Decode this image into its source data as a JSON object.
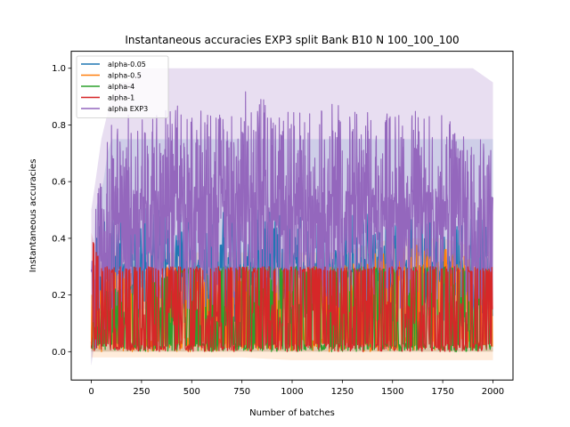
{
  "chart_data": {
    "type": "line",
    "title": "Instantaneous accuracies EXP3 split Bank B10 N 100_100_100",
    "xlabel": "Number of batches",
    "ylabel": "Instantaneous accuracies",
    "xlim": [
      -100,
      2100
    ],
    "ylim": [
      -0.1,
      1.06
    ],
    "xticks": [
      0,
      250,
      500,
      750,
      1000,
      1250,
      1500,
      1750,
      2000
    ],
    "yticks": [
      0.0,
      0.2,
      0.4,
      0.6,
      0.8,
      1.0
    ],
    "xtick_labels": [
      "0",
      "250",
      "500",
      "750",
      "1000",
      "1250",
      "1500",
      "1750",
      "2000"
    ],
    "ytick_labels": [
      "0.0",
      "0.2",
      "0.4",
      "0.6",
      "0.8",
      "1.0"
    ],
    "legend_position": "upper-left",
    "series": [
      {
        "name": "alpha-0.05",
        "color": "#1f77b4",
        "x": [
          0,
          20,
          40,
          60,
          80,
          100,
          150,
          200,
          250,
          280,
          300,
          400,
          500,
          1000,
          1500,
          2000
        ],
        "mean": [
          0.03,
          0.3,
          0.4,
          0.45,
          0.42,
          0.48,
          0.45,
          0.44,
          0.46,
          0.5,
          0.44,
          0.43,
          0.42,
          0.42,
          0.42,
          0.42
        ],
        "min": [
          0.0,
          0.0,
          0.02,
          0.1,
          0.1,
          0.1,
          0.1,
          0.12,
          0.12,
          0.12,
          0.12,
          0.1,
          0.1,
          0.1,
          0.1,
          0.1
        ],
        "max": [
          0.05,
          0.42,
          0.48,
          0.5,
          0.48,
          0.52,
          0.5,
          0.5,
          0.5,
          0.52,
          0.5,
          0.5,
          0.5,
          0.5,
          0.5,
          0.5
        ],
        "band_lower": [
          -0.05,
          0.2,
          0.25,
          0.3,
          0.3,
          0.3,
          0.3,
          0.3,
          0.3,
          0.3,
          0.3,
          0.3,
          0.3,
          0.3,
          0.3,
          0.3
        ],
        "band_upper": [
          0.1,
          0.5,
          0.55,
          0.6,
          0.7,
          0.75,
          0.75,
          0.75,
          0.75,
          0.75,
          0.75,
          0.75,
          0.75,
          0.75,
          0.75,
          0.75
        ]
      },
      {
        "name": "alpha-0.5",
        "color": "#ff7f0e",
        "x": [
          0,
          100,
          250,
          500,
          750,
          1000,
          1250,
          1500,
          1750,
          2000
        ],
        "mean": [
          0.05,
          0.15,
          0.15,
          0.15,
          0.15,
          0.15,
          0.15,
          0.16,
          0.16,
          0.15
        ],
        "min": [
          0.0,
          0.0,
          0.0,
          0.0,
          0.0,
          0.0,
          0.0,
          0.0,
          0.0,
          0.0
        ],
        "max": [
          0.2,
          0.3,
          0.3,
          0.3,
          0.3,
          0.3,
          0.3,
          0.38,
          0.38,
          0.3
        ],
        "band_lower": [
          -0.02,
          -0.02,
          -0.02,
          -0.02,
          -0.02,
          -0.03,
          -0.03,
          -0.03,
          -0.03,
          -0.03
        ],
        "band_upper": [
          0.3,
          0.35,
          0.35,
          0.35,
          0.35,
          0.35,
          0.35,
          0.4,
          0.4,
          0.35
        ]
      },
      {
        "name": "alpha-4",
        "color": "#2ca02c",
        "x": [
          0,
          500,
          1000,
          1500,
          2000
        ],
        "mean": [
          0.1,
          0.12,
          0.12,
          0.12,
          0.12
        ],
        "min": [
          0.0,
          0.0,
          0.0,
          0.0,
          0.0
        ],
        "max": [
          0.2,
          0.3,
          0.3,
          0.3,
          0.3
        ],
        "band_lower": [
          0.0,
          0.0,
          0.0,
          0.0,
          0.0
        ],
        "band_upper": [
          0.2,
          0.3,
          0.3,
          0.3,
          0.3
        ]
      },
      {
        "name": "alpha-1",
        "color": "#d62728",
        "x": [
          0,
          50,
          100,
          150,
          200,
          250,
          500,
          750,
          1000,
          1250,
          1500,
          1750,
          2000
        ],
        "mean": [
          0.05,
          0.12,
          0.12,
          0.13,
          0.13,
          0.13,
          0.13,
          0.13,
          0.13,
          0.13,
          0.13,
          0.13,
          0.13
        ],
        "min": [
          0.0,
          0.0,
          0.0,
          0.0,
          0.0,
          0.0,
          0.0,
          0.0,
          0.0,
          0.0,
          0.0,
          0.0,
          0.0
        ],
        "max": [
          0.42,
          0.3,
          0.3,
          0.3,
          0.3,
          0.3,
          0.3,
          0.3,
          0.3,
          0.3,
          0.3,
          0.3,
          0.3
        ],
        "band_lower": [
          0.0,
          0.0,
          0.0,
          0.0,
          0.0,
          0.0,
          0.0,
          0.0,
          0.0,
          0.0,
          0.0,
          0.0,
          0.0
        ],
        "band_upper": [
          0.42,
          0.3,
          0.3,
          0.3,
          0.3,
          0.3,
          0.3,
          0.3,
          0.3,
          0.3,
          0.3,
          0.3,
          0.3
        ]
      },
      {
        "name": "alpha EXP3",
        "color": "#9467bd",
        "x": [
          0,
          20,
          50,
          100,
          150,
          200,
          250,
          300,
          400,
          500,
          600,
          700,
          800,
          850,
          900,
          1000,
          1100,
          1200,
          1300,
          1400,
          1500,
          1600,
          1700,
          1800,
          1900,
          2000
        ],
        "mean": [
          0.15,
          0.3,
          0.4,
          0.45,
          0.5,
          0.52,
          0.52,
          0.5,
          0.5,
          0.5,
          0.5,
          0.5,
          0.5,
          0.5,
          0.5,
          0.5,
          0.5,
          0.5,
          0.5,
          0.5,
          0.5,
          0.5,
          0.5,
          0.5,
          0.5,
          0.5
        ],
        "min": [
          0.0,
          0.0,
          0.05,
          0.1,
          0.12,
          0.12,
          0.15,
          0.15,
          0.15,
          0.15,
          0.15,
          0.15,
          0.15,
          0.15,
          0.15,
          0.15,
          0.15,
          0.15,
          0.15,
          0.15,
          0.15,
          0.15,
          0.15,
          0.15,
          0.15,
          0.15
        ],
        "max": [
          0.42,
          0.55,
          0.65,
          0.8,
          0.82,
          0.85,
          0.88,
          0.85,
          0.88,
          0.85,
          0.85,
          0.85,
          0.95,
          0.9,
          0.85,
          0.85,
          0.85,
          0.88,
          0.85,
          0.85,
          0.85,
          0.85,
          0.85,
          0.82,
          0.82,
          0.78
        ],
        "band_lower": [
          -0.05,
          0.05,
          0.1,
          0.15,
          0.15,
          0.15,
          0.15,
          0.15,
          0.15,
          0.15,
          0.15,
          0.15,
          0.15,
          0.15,
          0.15,
          0.15,
          0.15,
          0.15,
          0.15,
          0.15,
          0.15,
          0.15,
          0.15,
          0.15,
          0.15,
          0.15
        ],
        "band_upper": [
          0.5,
          0.6,
          0.75,
          0.9,
          0.95,
          0.95,
          1.0,
          1.0,
          1.0,
          1.0,
          1.0,
          1.0,
          1.0,
          1.0,
          1.0,
          1.0,
          1.0,
          1.0,
          1.0,
          1.0,
          1.0,
          1.0,
          1.0,
          1.0,
          1.0,
          0.95
        ]
      }
    ]
  }
}
